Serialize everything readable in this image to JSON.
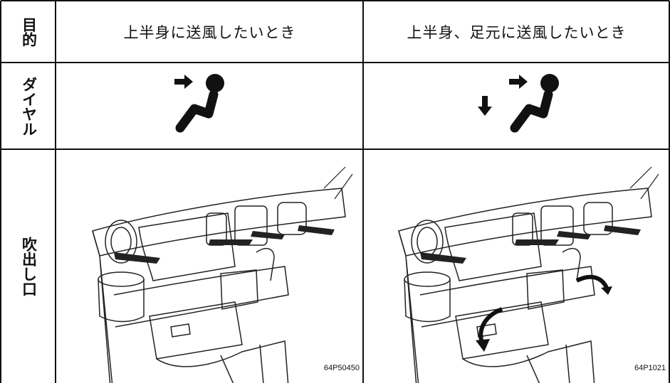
{
  "table": {
    "rows": [
      {
        "label": "目的",
        "cells": [
          "上半身に送風したいとき",
          "上半身、足元に送風したいとき"
        ]
      },
      {
        "label": "ダイヤル"
      },
      {
        "label": "吹出し口",
        "figure_codes": [
          "64P50450",
          "64P1021"
        ]
      }
    ]
  }
}
